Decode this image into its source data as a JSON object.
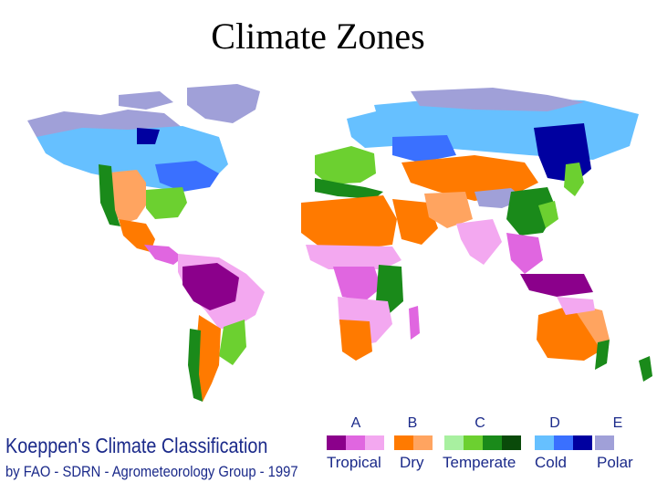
{
  "title": "Climate Zones",
  "legend": {
    "caption_line1": "Koeppen's Climate Classification",
    "caption_line2": "by FAO - SDRN - Agrometeorology Group - 1997",
    "groups": [
      {
        "letter": "A",
        "label": "Tropical",
        "colors": [
          "#8b008b",
          "#e066e0",
          "#f3a8f0"
        ]
      },
      {
        "letter": "B",
        "label": "Dry",
        "colors": [
          "#ff7a00",
          "#ffa460"
        ]
      },
      {
        "letter": "C",
        "label": "Temperate",
        "colors": [
          "#a8f0a0",
          "#6cd030",
          "#1a8a1a",
          "#0a4a0a"
        ]
      },
      {
        "letter": "D",
        "label": "Cold",
        "colors": [
          "#66c0ff",
          "#3a70ff",
          "#0000a0"
        ]
      },
      {
        "letter": "E",
        "label": "Polar",
        "colors": [
          "#a0a0d8"
        ]
      }
    ]
  },
  "map_colors": {
    "tropical_rainforest": "#8b008b",
    "tropical_monsoon": "#e066e0",
    "tropical_savanna": "#f3a8f0",
    "desert": "#ff7a00",
    "steppe": "#ffa460",
    "temperate_light": "#a8f0a0",
    "temperate_green": "#6cd030",
    "temperate_dark": "#1a8a1a",
    "temperate_darkest": "#0a4a0a",
    "cold_light": "#66c0ff",
    "cold_mid": "#3a70ff",
    "cold_dark": "#0000a0",
    "polar": "#a0a0d8"
  }
}
